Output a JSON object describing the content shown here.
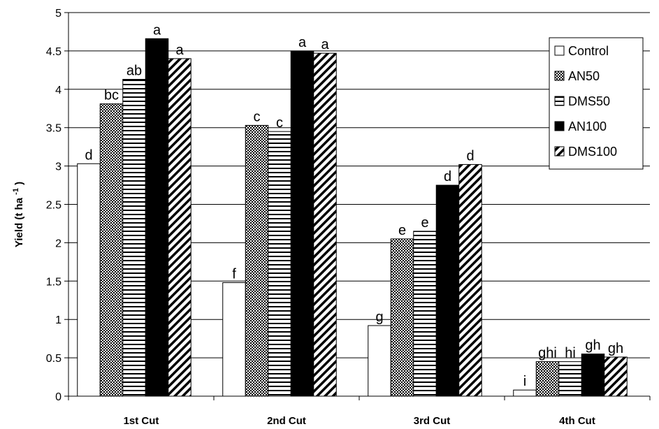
{
  "chart_data": {
    "type": "bar",
    "ylabel": "Yield (t ha",
    "ylabel_sup": "-1",
    "ylabel_close": ")",
    "ylim": [
      0,
      5
    ],
    "yticks": [
      "0",
      "0.5",
      "1",
      "1.5",
      "2",
      "2.5",
      "3",
      "3.5",
      "4",
      "4.5",
      "5"
    ],
    "grid": true,
    "legend_position": "top-right",
    "categories": [
      "1st Cut",
      "2nd Cut",
      "3rd Cut",
      "4th Cut"
    ],
    "series": [
      {
        "name": "Control",
        "pattern": "white",
        "values": [
          3.03,
          1.48,
          0.92,
          0.08
        ],
        "labels": [
          "d",
          "f",
          "g",
          "i"
        ]
      },
      {
        "name": "AN50",
        "pattern": "checker",
        "values": [
          3.81,
          3.53,
          2.05,
          0.45
        ],
        "labels": [
          "bc",
          "c",
          "e",
          "ghi"
        ]
      },
      {
        "name": "DMS50",
        "pattern": "hlines",
        "values": [
          4.13,
          3.45,
          2.15,
          0.45
        ],
        "labels": [
          "ab",
          "c",
          "e",
          "hi"
        ]
      },
      {
        "name": "AN100",
        "pattern": "black",
        "values": [
          4.66,
          4.5,
          2.75,
          0.55
        ],
        "labels": [
          "a",
          "a",
          "d",
          "gh"
        ]
      },
      {
        "name": "DMS100",
        "pattern": "diag",
        "values": [
          4.4,
          4.47,
          3.02,
          0.51
        ],
        "labels": [
          "a",
          "a",
          "d",
          "gh"
        ]
      }
    ],
    "colors": {
      "bar_stroke": "#000000",
      "grid": "#000000",
      "background": "#ffffff"
    }
  }
}
